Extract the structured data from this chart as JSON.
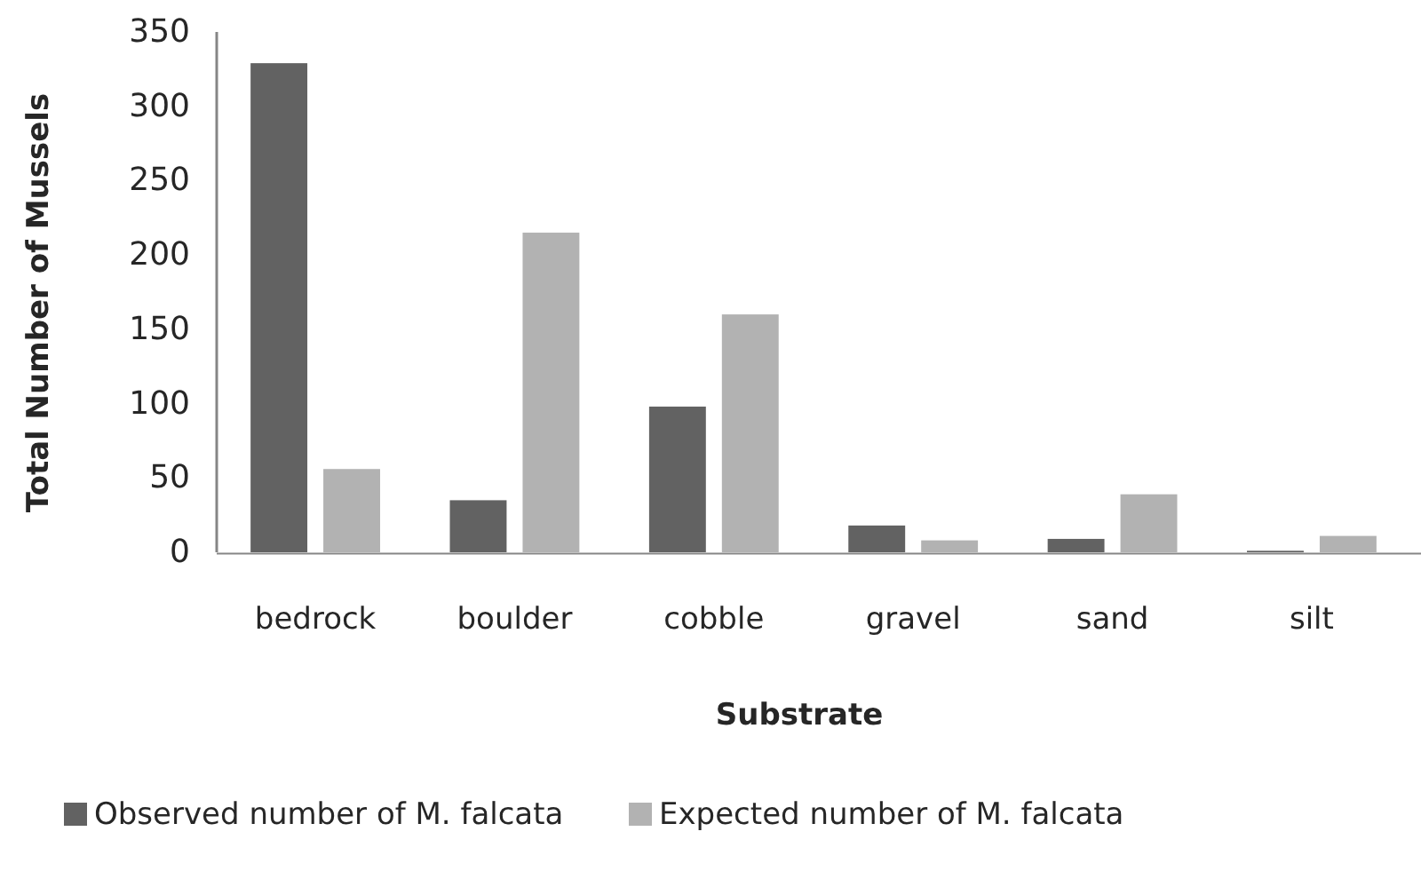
{
  "chart_data": {
    "type": "bar",
    "xlabel": "Substrate",
    "ylabel": "Total Number of Mussels",
    "categories": [
      "bedrock",
      "boulder",
      "cobble",
      "gravel",
      "sand",
      "silt"
    ],
    "series": [
      {
        "name": "Observed number of M. falcata",
        "color": "#626262",
        "values": [
          329,
          35,
          98,
          18,
          9,
          1
        ]
      },
      {
        "name": "Expected number of M. falcata",
        "color": "#b2b2b2",
        "values": [
          56,
          215,
          160,
          8,
          39,
          11
        ]
      }
    ],
    "ylim": [
      0,
      350
    ],
    "yticks": [
      0,
      50,
      100,
      150,
      200,
      250,
      300,
      350
    ],
    "grid": false,
    "legend": "bottom"
  }
}
